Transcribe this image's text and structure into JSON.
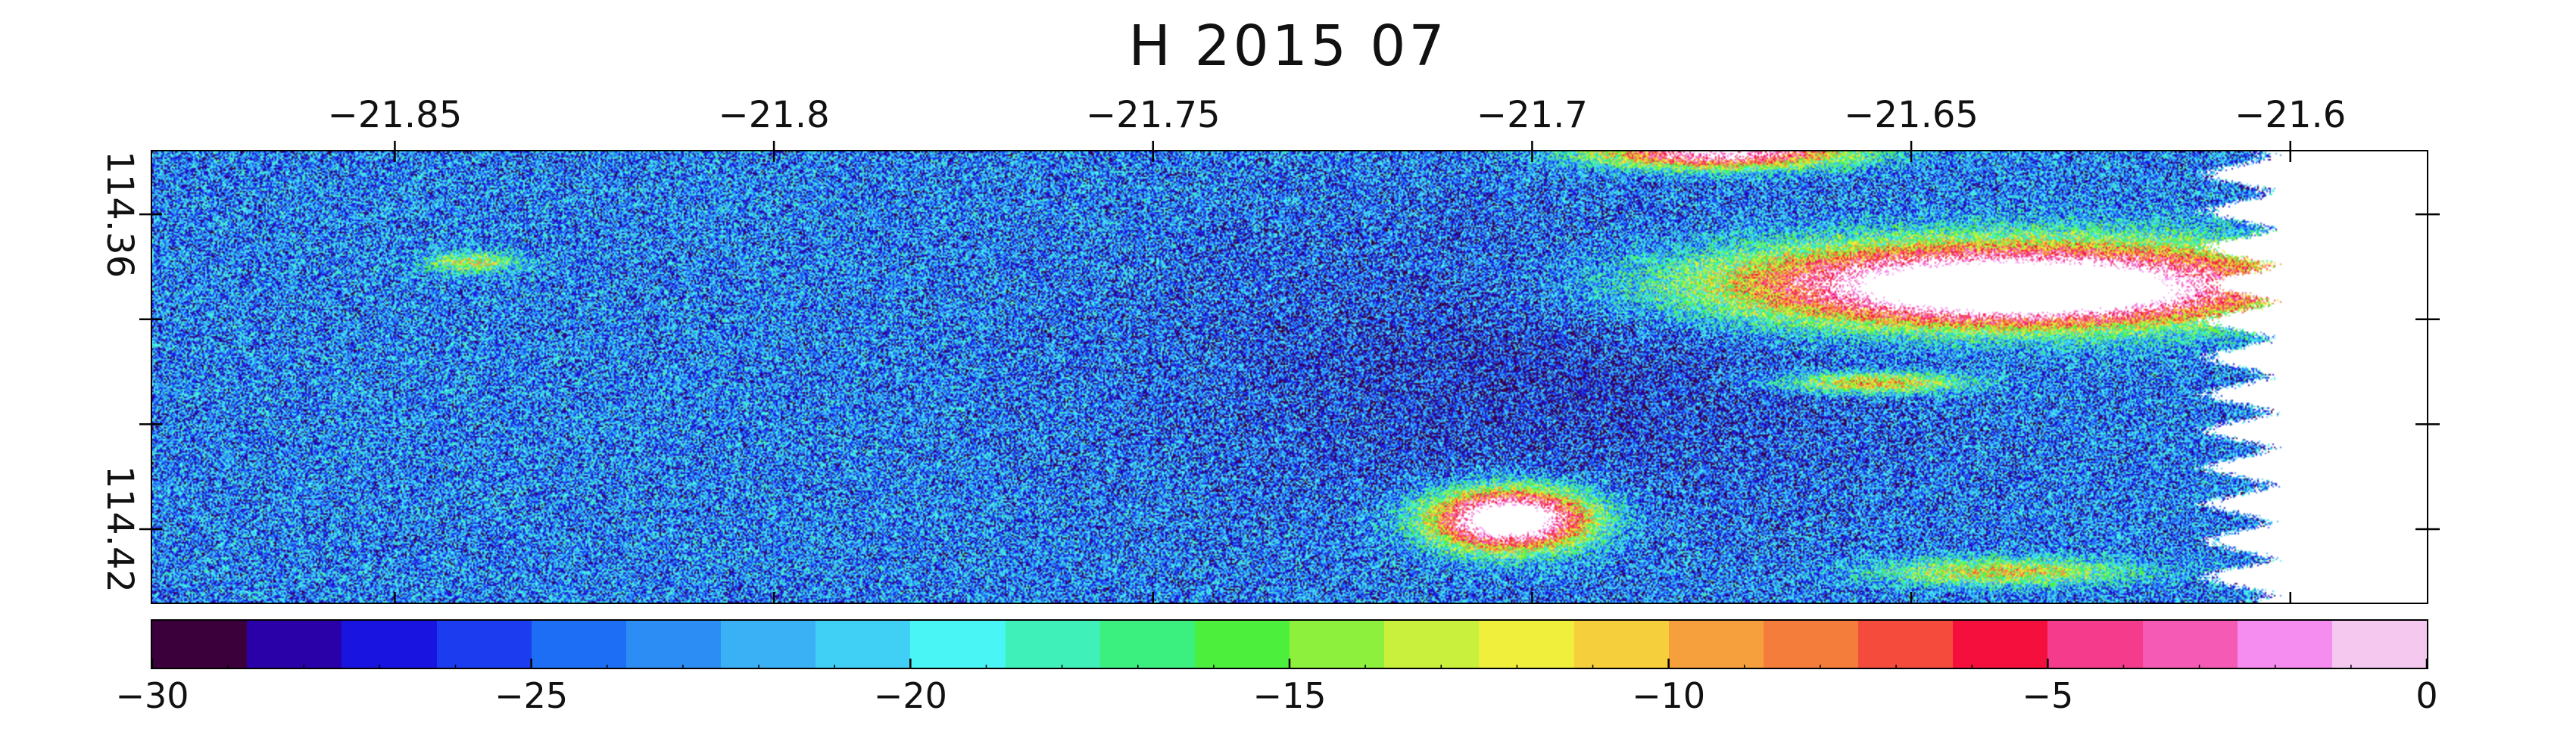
{
  "title": "H 2015 07",
  "map": {
    "x_axis": {
      "range": [
        -21.882,
        -21.582
      ],
      "ticks": [
        -21.85,
        -21.8,
        -21.75,
        -21.7,
        -21.65,
        -21.6
      ],
      "tick_labels": [
        "−21.85",
        "−21.8",
        "−21.75",
        "−21.7",
        "−21.65",
        "−21.6"
      ],
      "label_position": "top"
    },
    "y_axis": {
      "range": [
        114.348,
        114.434
      ],
      "ticks": [
        114.36,
        114.42
      ],
      "tick_labels": [
        "114.36",
        "114.42"
      ],
      "minor_ticks": [
        114.36,
        114.38,
        114.4,
        114.42
      ],
      "label_position": "left"
    },
    "field": {
      "background_level_range": [
        -30,
        -17
      ],
      "features": [
        {
          "kind": "elongated-hotspot",
          "lon_range": [
            -21.668,
            -21.61
          ],
          "lat_range": [
            114.357,
            114.395
          ],
          "peak_value": 0
        },
        {
          "kind": "hotspot",
          "lon": -21.703,
          "lat": 114.418,
          "peak_value": 0
        },
        {
          "kind": "hotspot-edge",
          "lon_range": [
            -21.69,
            -21.658
          ],
          "lat_range": [
            114.348,
            114.351
          ],
          "peak_value": -3
        },
        {
          "kind": "minor-hotspot",
          "lon": -21.84,
          "lat": 114.369,
          "peak_value": -8
        }
      ],
      "no_data_region": "right edge beyond -21.605"
    }
  },
  "colorbar": {
    "range": [
      -30,
      0
    ],
    "ticks": [
      -30,
      -25,
      -20,
      -15,
      -10,
      -5,
      0
    ],
    "tick_labels": [
      "−30",
      "−25",
      "−20",
      "−15",
      "−10",
      "−5",
      "0"
    ],
    "colors": [
      "#3b003b",
      "#2a00a8",
      "#1a14e0",
      "#1c3cf0",
      "#1e6ef5",
      "#2c8ef5",
      "#3ab0f5",
      "#40d0f5",
      "#4af5f5",
      "#3ff0b8",
      "#3cf080",
      "#4cf03c",
      "#8cf03c",
      "#c8f03c",
      "#f0f03c",
      "#f5d03c",
      "#f5a03c",
      "#f57d3c",
      "#f54b3c",
      "#f50f3c",
      "#f53c8c",
      "#f55ab4",
      "#f58cf0",
      "#f5c8f0"
    ]
  }
}
